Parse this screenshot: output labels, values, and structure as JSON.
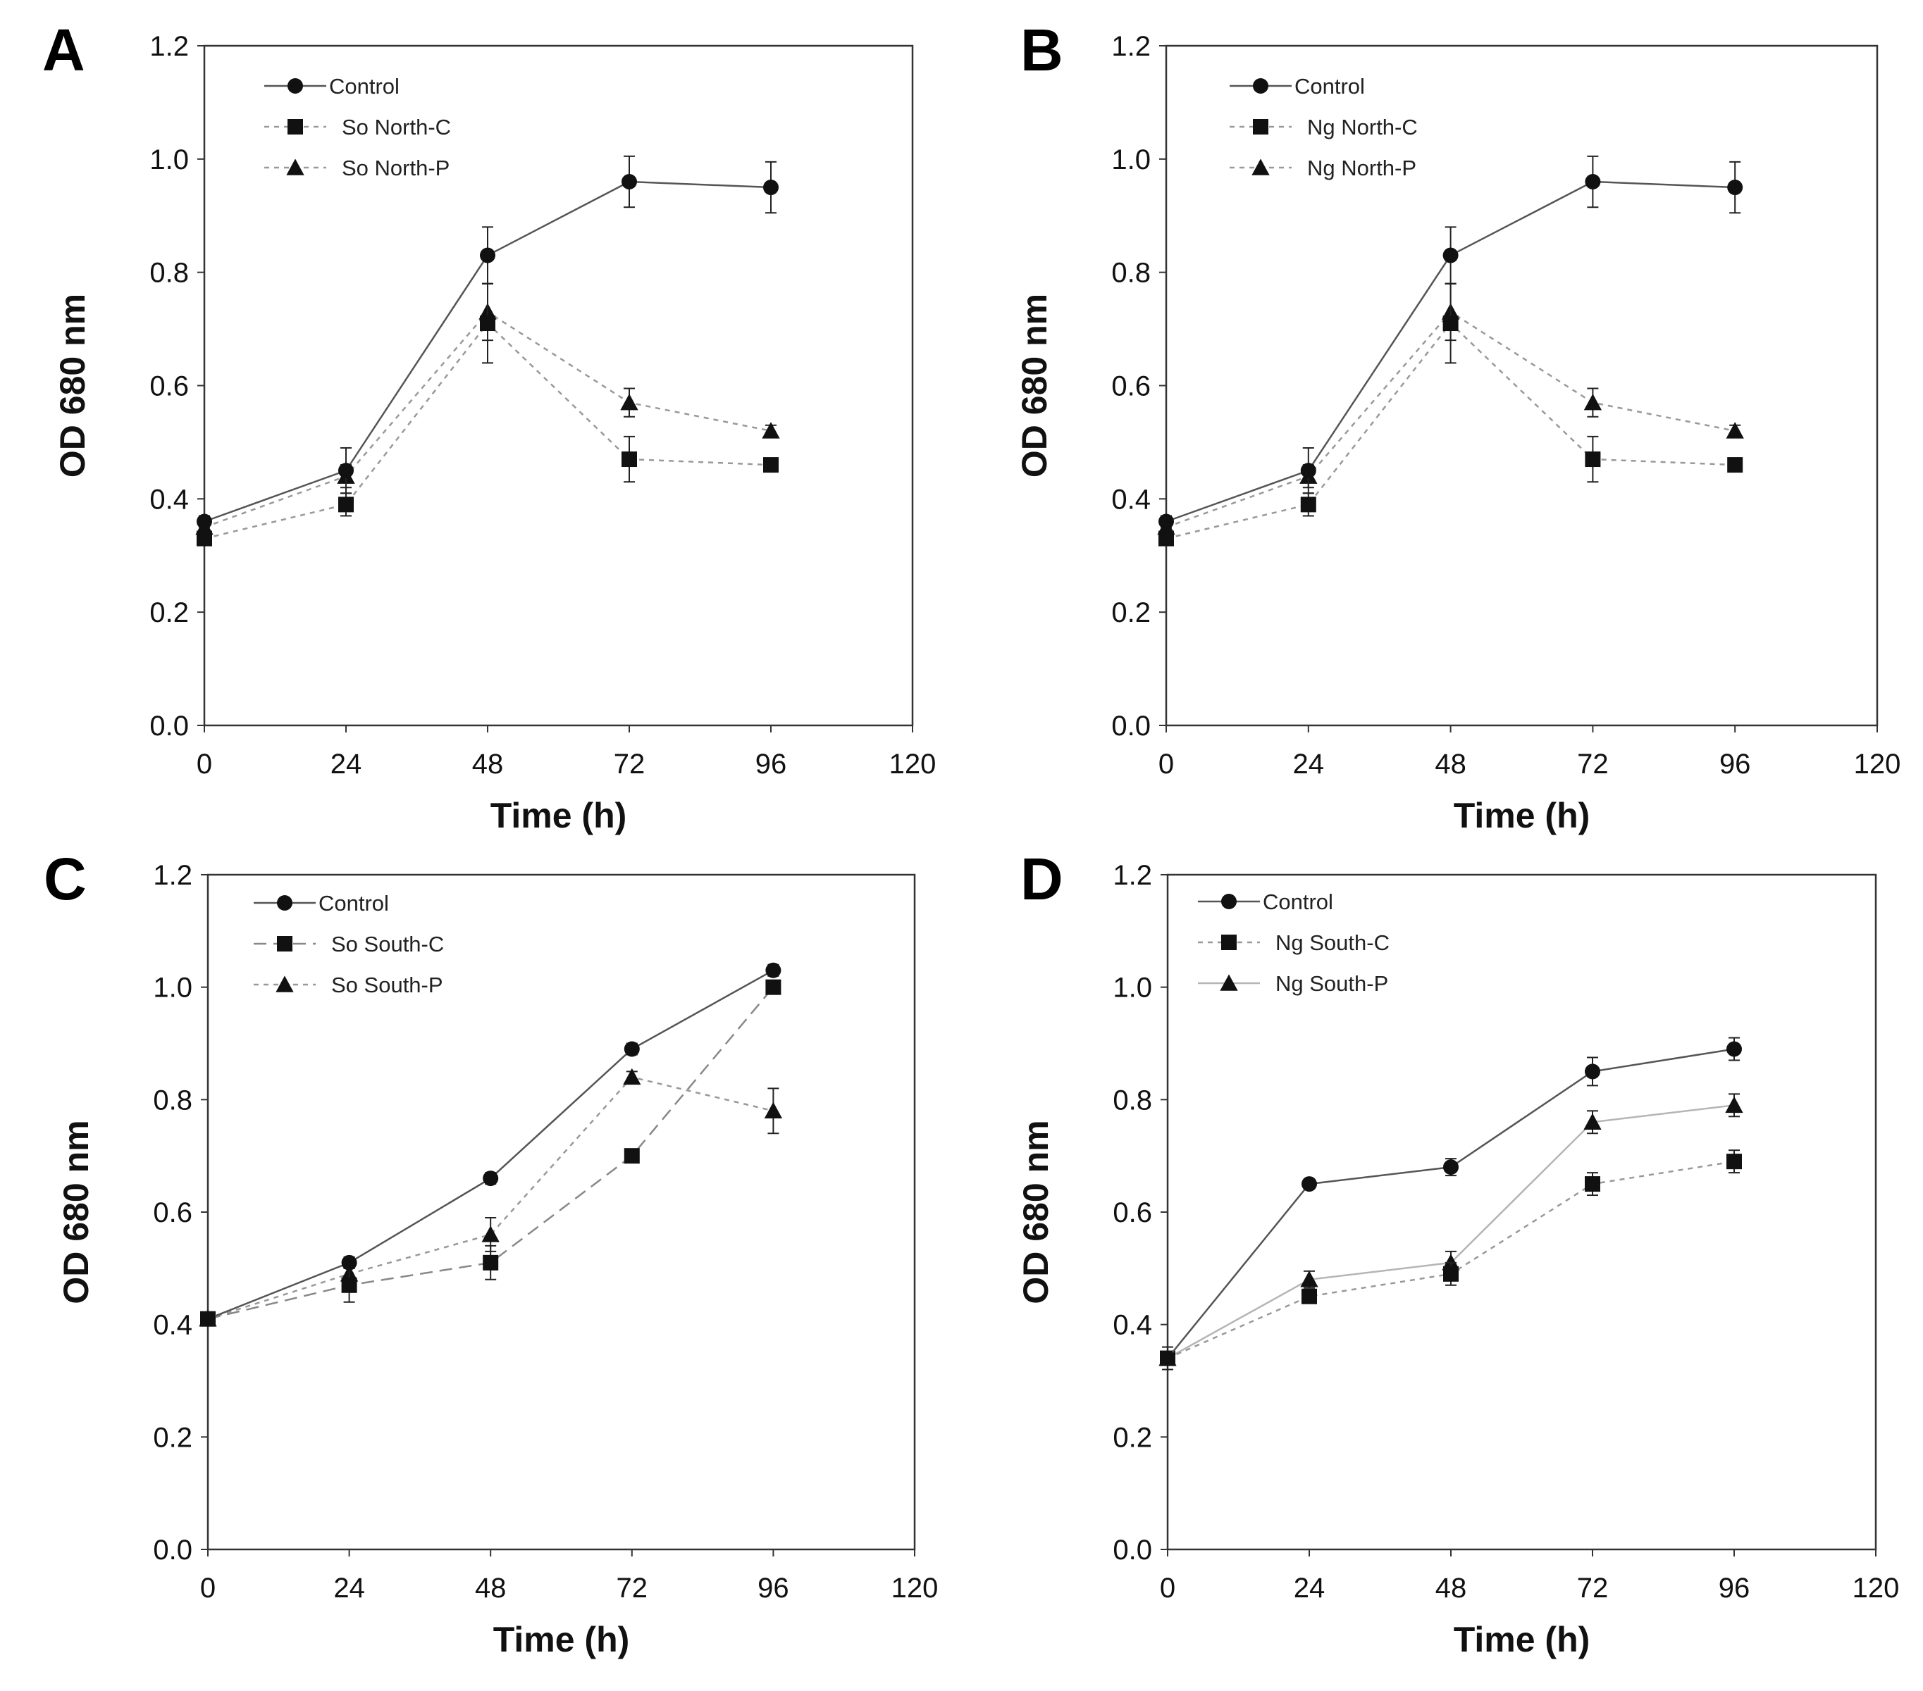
{
  "chart_data": [
    {
      "panel": "A",
      "type": "line",
      "xlabel": "Time (h)",
      "ylabel": "OD 680 nm",
      "xlim": [
        0,
        120
      ],
      "ylim": [
        0,
        1.2
      ],
      "xticks": [
        "0",
        "24",
        "48",
        "72",
        "96",
        "120"
      ],
      "yticks": [
        "0.0",
        "0.2",
        "0.4",
        "0.6",
        "0.8",
        "1.0",
        "1.2"
      ],
      "legend_position": "top-left",
      "x": [
        0,
        24,
        48,
        72,
        96
      ],
      "series": [
        {
          "name": "Control",
          "marker": "circle",
          "line": "solid",
          "color": "#555555",
          "values": [
            0.36,
            0.45,
            0.83,
            0.96,
            0.95
          ],
          "errors": [
            0.01,
            0.04,
            0.05,
            0.045,
            0.045
          ]
        },
        {
          "name": "So North-C",
          "marker": "square",
          "line": "dotted",
          "color": "#999999",
          "values": [
            0.33,
            0.39,
            0.71,
            0.47,
            0.46
          ],
          "errors": [
            0.01,
            0.02,
            0.07,
            0.04,
            0.01
          ]
        },
        {
          "name": "So North-P",
          "marker": "triangle",
          "line": "dotted",
          "color": "#999999",
          "values": [
            0.35,
            0.44,
            0.73,
            0.57,
            0.52
          ],
          "errors": [
            0.01,
            0.02,
            0.05,
            0.025,
            0.01
          ]
        }
      ]
    },
    {
      "panel": "B",
      "type": "line",
      "xlabel": "Time (h)",
      "ylabel": "OD 680 nm",
      "xlim": [
        0,
        120
      ],
      "ylim": [
        0,
        1.2
      ],
      "xticks": [
        "0",
        "24",
        "48",
        "72",
        "96",
        "120"
      ],
      "yticks": [
        "0.0",
        "0.2",
        "0.4",
        "0.6",
        "0.8",
        "1.0",
        "1.2"
      ],
      "legend_position": "top-left",
      "x": [
        0,
        24,
        48,
        72,
        96
      ],
      "series": [
        {
          "name": "Control",
          "marker": "circle",
          "line": "solid",
          "color": "#555555",
          "values": [
            0.36,
            0.45,
            0.83,
            0.96,
            0.95
          ],
          "errors": [
            0.01,
            0.04,
            0.05,
            0.045,
            0.045
          ]
        },
        {
          "name": "Ng North-C",
          "marker": "square",
          "line": "dotted",
          "color": "#999999",
          "values": [
            0.33,
            0.39,
            0.71,
            0.47,
            0.46
          ],
          "errors": [
            0.01,
            0.02,
            0.07,
            0.04,
            0.01
          ]
        },
        {
          "name": "Ng North-P",
          "marker": "triangle",
          "line": "dotted",
          "color": "#999999",
          "values": [
            0.35,
            0.44,
            0.73,
            0.57,
            0.52
          ],
          "errors": [
            0.01,
            0.02,
            0.05,
            0.025,
            0.01
          ]
        }
      ]
    },
    {
      "panel": "C",
      "type": "line",
      "xlabel": "Time (h)",
      "ylabel": "OD 680 nm",
      "xlim": [
        0,
        120
      ],
      "ylim": [
        0,
        1.2
      ],
      "xticks": [
        "0",
        "24",
        "48",
        "72",
        "96",
        "120"
      ],
      "yticks": [
        "0.0",
        "0.2",
        "0.4",
        "0.6",
        "0.8",
        "1.0",
        "1.2"
      ],
      "legend_position": "top-left",
      "x": [
        0,
        24,
        48,
        72,
        96
      ],
      "series": [
        {
          "name": "Control",
          "marker": "circle",
          "line": "solid",
          "color": "#555555",
          "values": [
            0.41,
            0.51,
            0.66,
            0.89,
            1.03
          ],
          "errors": [
            0.01,
            0.01,
            0.01,
            0.01,
            0.01
          ]
        },
        {
          "name": "So South-C",
          "marker": "square",
          "line": "dashed",
          "color": "#888888",
          "values": [
            0.41,
            0.47,
            0.51,
            0.7,
            1.0
          ],
          "errors": [
            0.01,
            0.03,
            0.03,
            0.01,
            0.01
          ]
        },
        {
          "name": "So South-P",
          "marker": "triangle",
          "line": "dotted",
          "color": "#999999",
          "values": [
            0.41,
            0.49,
            0.56,
            0.84,
            0.78
          ],
          "errors": [
            0.01,
            0.02,
            0.03,
            0.01,
            0.04
          ]
        }
      ]
    },
    {
      "panel": "D",
      "type": "line",
      "xlabel": "Time (h)",
      "ylabel": "OD 680 nm",
      "xlim": [
        0,
        120
      ],
      "ylim": [
        0,
        1.2
      ],
      "xticks": [
        "0",
        "24",
        "48",
        "72",
        "96",
        "120"
      ],
      "yticks": [
        "0.0",
        "0.2",
        "0.4",
        "0.6",
        "0.8",
        "1.0",
        "1.2"
      ],
      "legend_position": "top-left",
      "x": [
        0,
        24,
        48,
        72,
        96
      ],
      "series": [
        {
          "name": "Control",
          "marker": "circle",
          "line": "solid",
          "color": "#555555",
          "values": [
            0.34,
            0.65,
            0.68,
            0.85,
            0.89
          ],
          "errors": [
            0.02,
            0.005,
            0.015,
            0.025,
            0.02
          ]
        },
        {
          "name": "Ng South-C",
          "marker": "square",
          "line": "dotted",
          "color": "#999999",
          "values": [
            0.34,
            0.45,
            0.49,
            0.65,
            0.69
          ],
          "errors": [
            0.01,
            0.01,
            0.02,
            0.02,
            0.02
          ]
        },
        {
          "name": "Ng South-P",
          "marker": "triangle",
          "line": "solid",
          "color": "#b5b5b5",
          "values": [
            0.34,
            0.48,
            0.51,
            0.76,
            0.79
          ],
          "errors": [
            0.01,
            0.015,
            0.02,
            0.02,
            0.02
          ]
        }
      ]
    }
  ]
}
